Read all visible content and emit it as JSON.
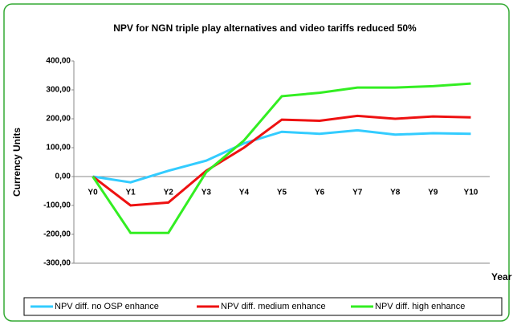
{
  "chart_data": {
    "type": "line",
    "title": "NPV for NGN triple play alternatives and video tariffs reduced 50%",
    "ylabel": "Currency Units",
    "xlabel": "Year",
    "categories": [
      "Y0",
      "Y1",
      "Y2",
      "Y3",
      "Y4",
      "Y5",
      "Y6",
      "Y7",
      "Y8",
      "Y9",
      "Y10"
    ],
    "series": [
      {
        "name": "NPV diff. no OSP enhance",
        "color": "#33ccff",
        "values": [
          0,
          -20,
          20,
          55,
          115,
          155,
          148,
          160,
          145,
          150,
          148
        ]
      },
      {
        "name": "NPV diff. medium enhance",
        "color": "#ee1111",
        "values": [
          0,
          -100,
          -90,
          20,
          100,
          197,
          193,
          210,
          200,
          208,
          205
        ]
      },
      {
        "name": "NPV diff. high enhance",
        "color": "#33ee22",
        "values": [
          0,
          -195,
          -195,
          15,
          125,
          278,
          290,
          308,
          308,
          313,
          322
        ]
      }
    ],
    "ylim": [
      -300,
      400
    ],
    "yticks": [
      {
        "value": -300,
        "label": "-300,00"
      },
      {
        "value": -200,
        "label": "-200,00"
      },
      {
        "value": -100,
        "label": "-100,00"
      },
      {
        "value": 0,
        "label": "0,00"
      },
      {
        "value": 100,
        "label": "100,00"
      },
      {
        "value": 200,
        "label": "200,00"
      },
      {
        "value": 300,
        "label": "300,00"
      },
      {
        "value": 400,
        "label": "400,00"
      }
    ],
    "grid": false,
    "legend": "bottom"
  }
}
